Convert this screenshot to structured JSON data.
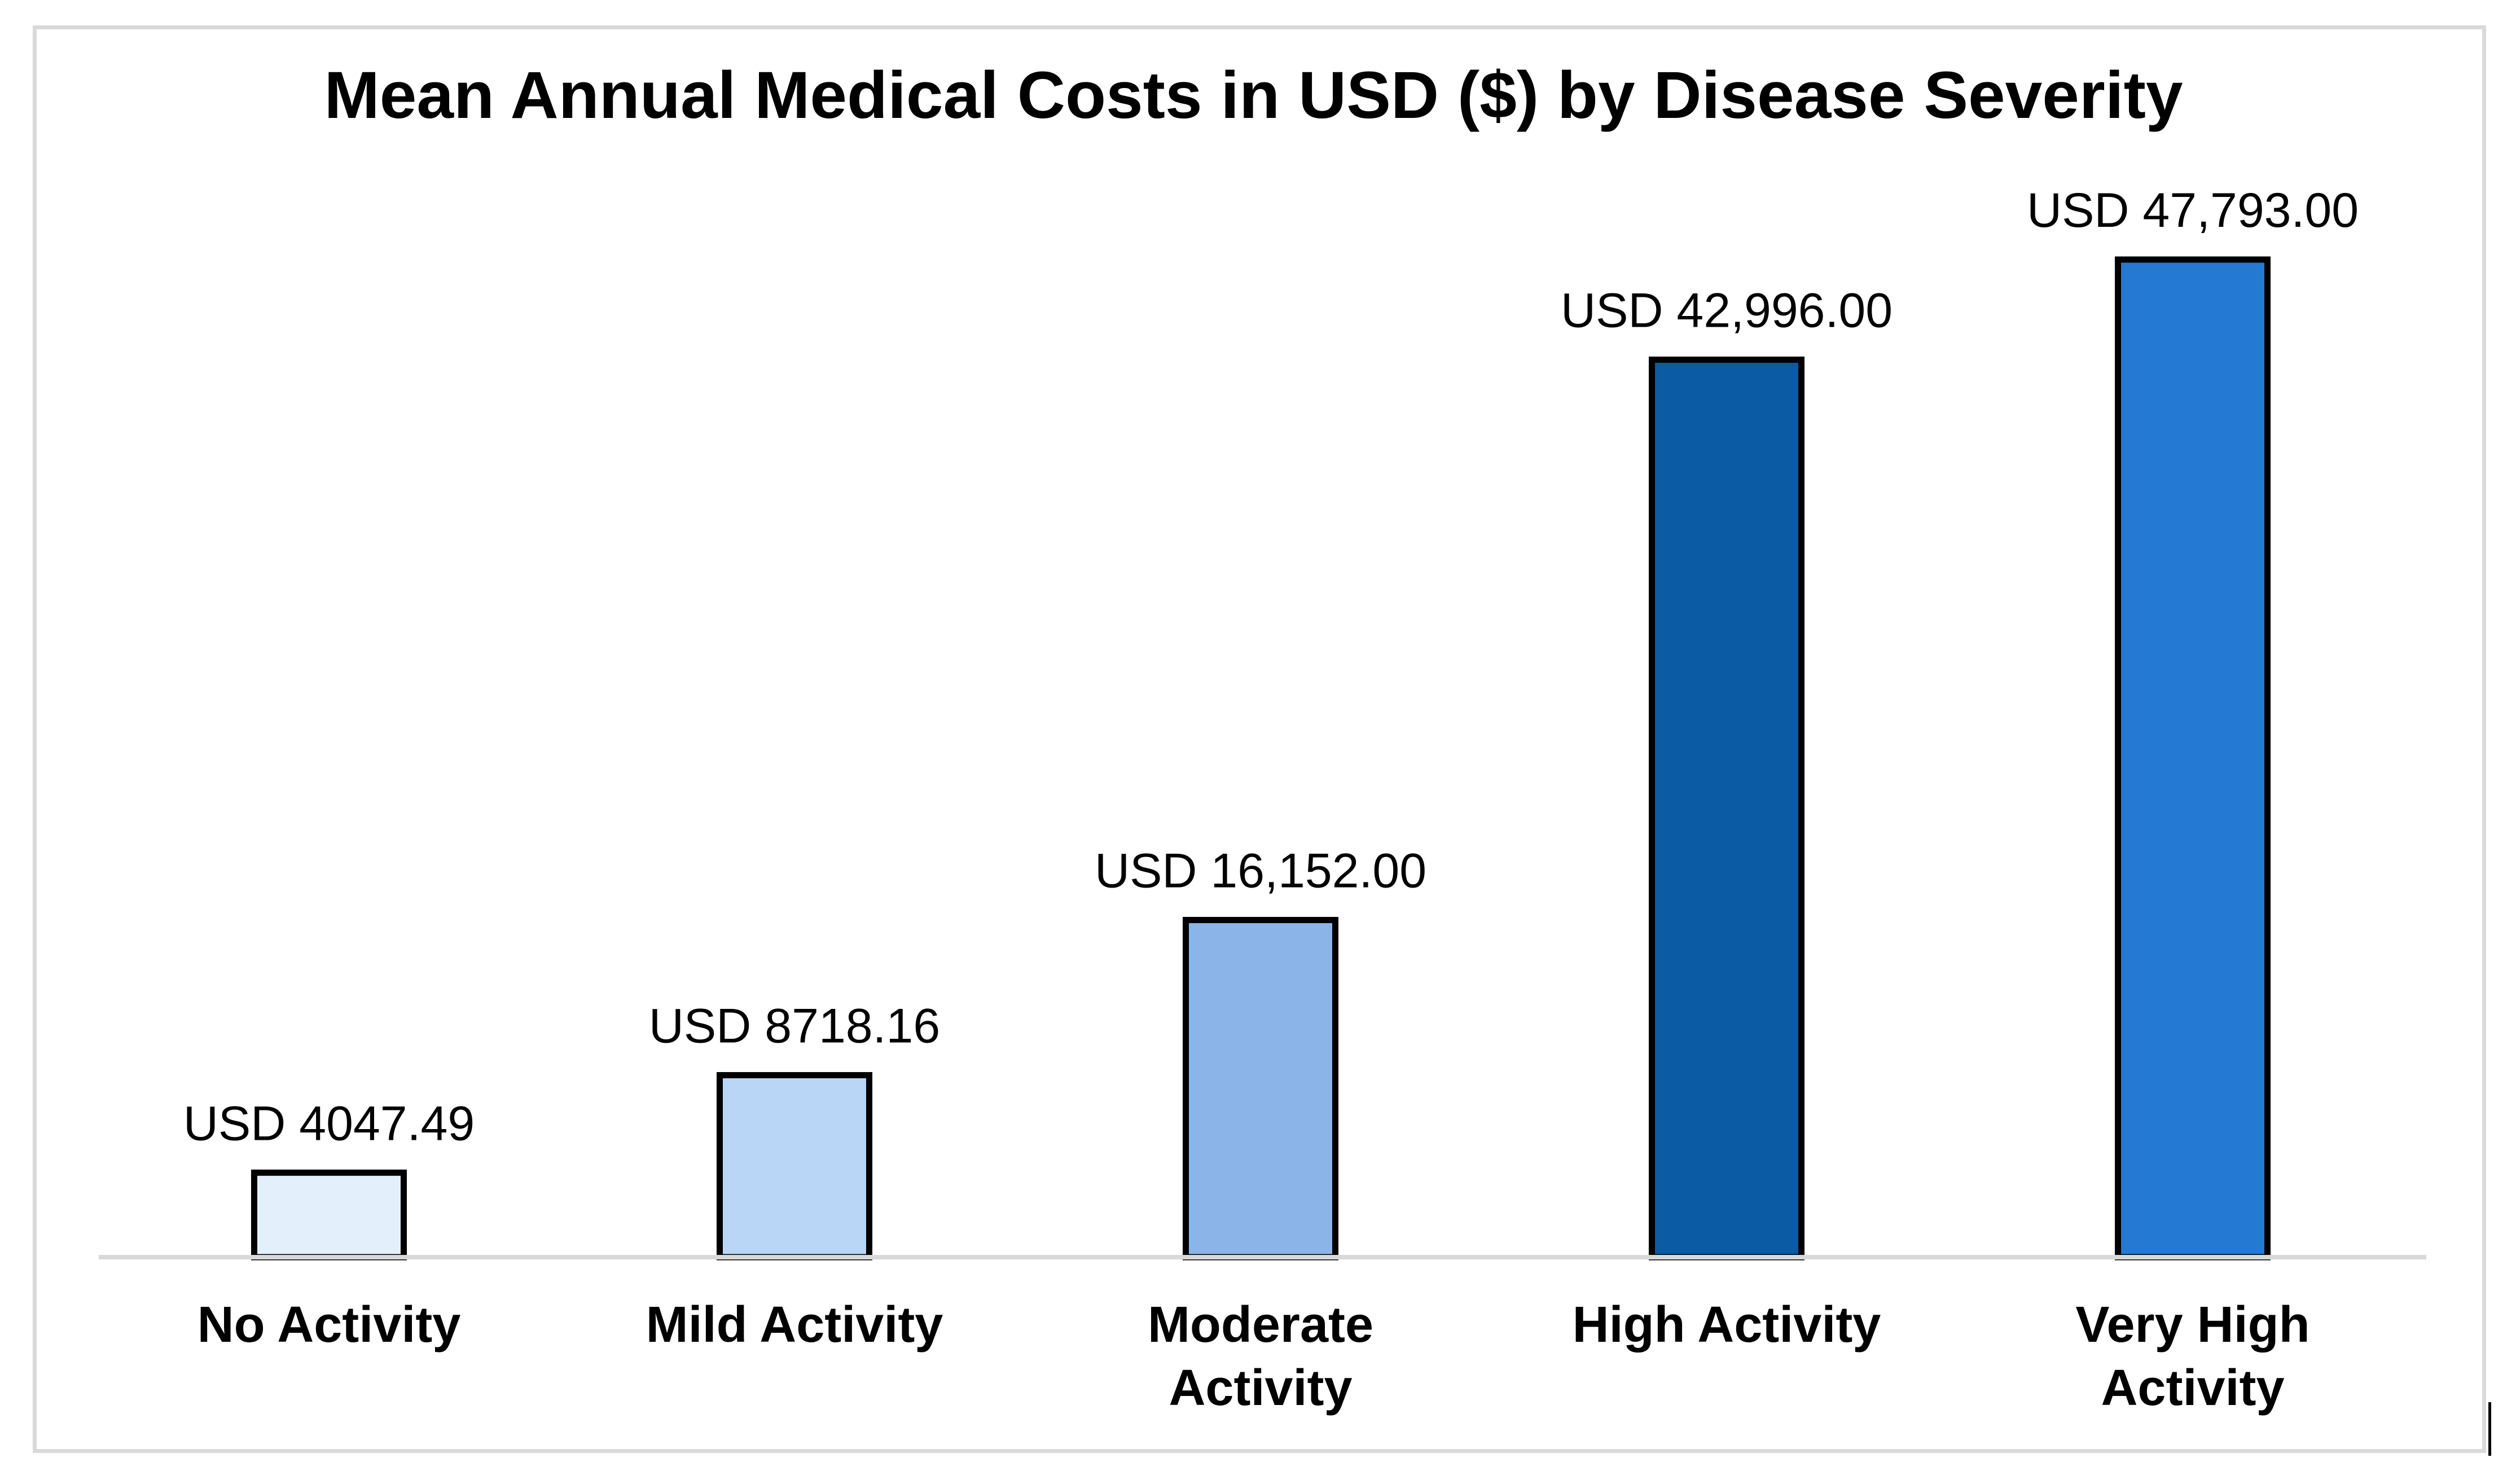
{
  "chart_data": {
    "type": "bar",
    "title": "Mean Annual Medical Costs in USD ($) by Disease Severity",
    "xlabel": "",
    "ylabel": "",
    "ylim": [
      0,
      47793
    ],
    "grid": false,
    "legend": "none",
    "categories": [
      [
        "No Activity"
      ],
      [
        "Mild Activity"
      ],
      [
        "Moderate",
        "Activity"
      ],
      [
        "High Activity"
      ],
      [
        "Very High",
        "Activity"
      ]
    ],
    "values": [
      4047.49,
      8718.16,
      16152.0,
      42996.0,
      47793.0
    ],
    "data_labels": [
      "USD 4047.49",
      "USD 8718.16",
      "USD 16,152.00",
      "USD 42,996.00",
      "USD 47,793.00"
    ],
    "colors": [
      "#e3f0fc",
      "#bad6f6",
      "#8bb5e8",
      "#0b5aa4",
      "#2479d2"
    ],
    "bar_edge_color": "#000000",
    "axis_color": "#d9d9d9"
  }
}
